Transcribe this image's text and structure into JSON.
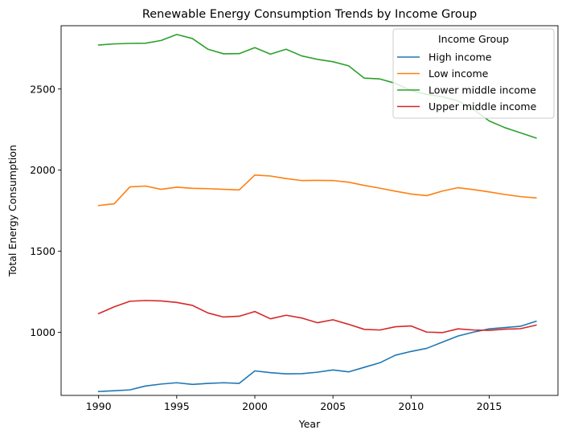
{
  "chart_data": {
    "type": "line",
    "title": "Renewable Energy Consumption Trends by Income Group",
    "xlabel": "Year",
    "ylabel": "Total Energy Consumption",
    "xlim": [
      1987.6,
      2019.4
    ],
    "ylim": [
      612,
      2890
    ],
    "xticks": [
      1990,
      1995,
      2000,
      2005,
      2010,
      2015
    ],
    "yticks": [
      1000,
      1500,
      2000,
      2500
    ],
    "grid": false,
    "legend": {
      "title": "Income Group",
      "placement": "upper-right"
    },
    "x": [
      1990,
      1991,
      1992,
      1993,
      1994,
      1995,
      1996,
      1997,
      1998,
      1999,
      2000,
      2001,
      2002,
      2003,
      2004,
      2005,
      2006,
      2007,
      2008,
      2009,
      2010,
      2011,
      2012,
      2013,
      2014,
      2015,
      2016,
      2017,
      2018
    ],
    "series": [
      {
        "name": "High income",
        "color": "#1f77b4",
        "values": [
          636,
          641,
          646,
          670,
          682,
          690,
          680,
          686,
          690,
          686,
          763,
          752,
          745,
          746,
          755,
          769,
          757,
          785,
          813,
          860,
          883,
          902,
          940,
          978,
          1002,
          1022,
          1030,
          1038,
          1069
        ]
      },
      {
        "name": "Low income",
        "color": "#ff7f0e",
        "values": [
          1782,
          1793,
          1897,
          1902,
          1882,
          1895,
          1888,
          1886,
          1882,
          1878,
          1970,
          1964,
          1948,
          1936,
          1937,
          1936,
          1926,
          1906,
          1889,
          1870,
          1853,
          1843,
          1871,
          1892,
          1880,
          1866,
          1850,
          1837,
          1829
        ]
      },
      {
        "name": "Lower middle income",
        "color": "#2ca02c",
        "values": [
          2771,
          2778,
          2781,
          2782,
          2799,
          2836,
          2811,
          2745,
          2717,
          2718,
          2755,
          2715,
          2745,
          2704,
          2683,
          2668,
          2643,
          2567,
          2562,
          2535,
          2490,
          2467,
          2452,
          2427,
          2374,
          2303,
          2262,
          2230,
          2198
        ]
      },
      {
        "name": "Upper middle income",
        "color": "#d62728",
        "values": [
          1116,
          1158,
          1192,
          1197,
          1194,
          1185,
          1167,
          1120,
          1095,
          1100,
          1129,
          1084,
          1106,
          1089,
          1060,
          1078,
          1050,
          1019,
          1015,
          1035,
          1040,
          1002,
          999,
          1022,
          1015,
          1013,
          1020,
          1023,
          1045
        ]
      }
    ]
  }
}
